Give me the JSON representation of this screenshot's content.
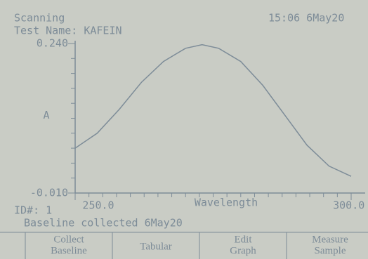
{
  "header": {
    "status": "Scanning",
    "clock": "15:06 6May20",
    "test_name": "Test Name: KAFEIN"
  },
  "chart_data": {
    "type": "line",
    "y_label": "A",
    "x_label": "Wavelength",
    "x": [
      250,
      254,
      258,
      262,
      266,
      270,
      273,
      276,
      280,
      284,
      288,
      292,
      296,
      300
    ],
    "series": [
      {
        "color": "#7d8c98",
        "values": [
          0.065,
          0.09,
          0.13,
          0.175,
          0.21,
          0.232,
          0.238,
          0.232,
          0.21,
          0.17,
          0.12,
          0.07,
          0.035,
          0.018
        ]
      }
    ],
    "xlim": [
      250,
      300
    ],
    "ylim": [
      -0.01,
      0.24
    ],
    "xticks": [
      {
        "value": 250,
        "label": "250.0"
      },
      {
        "value": 300,
        "label": "300.0"
      }
    ],
    "yticks": [
      {
        "value": 0.24,
        "label": "0.240"
      },
      {
        "value": -0.01,
        "label": "-0.010"
      }
    ]
  },
  "footer": {
    "id": "ID#: 1",
    "baseline": "Baseline collected 6May20"
  },
  "buttons": [
    [
      "Collect",
      "Baseline"
    ],
    [
      "Tabular"
    ],
    [
      "Edit",
      "Graph"
    ],
    [
      "Measure",
      "Sample"
    ]
  ]
}
